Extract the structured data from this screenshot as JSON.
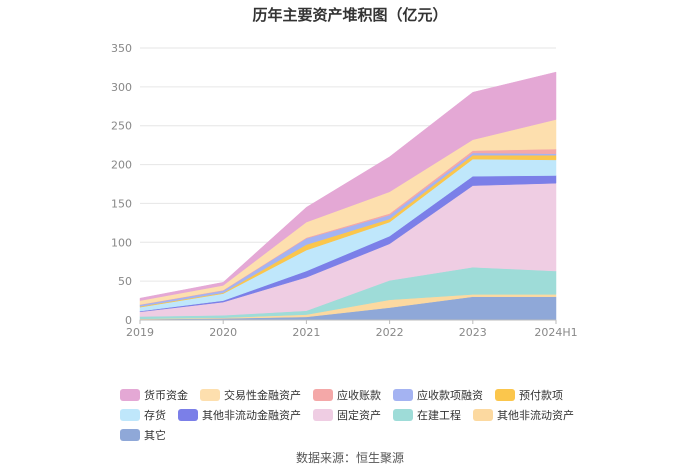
{
  "chart_data": {
    "type": "area",
    "stacked": true,
    "title": "历年主要资产堆积图（亿元）",
    "x": [
      "2019",
      "2020",
      "2021",
      "2022",
      "2023",
      "2024H1"
    ],
    "yticks": [
      0,
      50,
      100,
      150,
      200,
      250,
      300,
      350
    ],
    "ylim": [
      0,
      350
    ],
    "grid": true,
    "legend_position": "bottom",
    "series": [
      {
        "name": "其它",
        "color": "#8fa8d8",
        "values": [
          1,
          2,
          4,
          16,
          30,
          30
        ]
      },
      {
        "name": "其他非流动资产",
        "color": "#fcd9a0",
        "values": [
          0.5,
          1,
          3,
          10,
          3,
          3
        ]
      },
      {
        "name": "在建工程",
        "color": "#9edcd8",
        "values": [
          3,
          3,
          5,
          25,
          35,
          30
        ]
      },
      {
        "name": "固定资产",
        "color": "#efcde3",
        "values": [
          6,
          17,
          43,
          47,
          105,
          113
        ]
      },
      {
        "name": "其他非流动金融资产",
        "color": "#7b7fe8",
        "values": [
          1,
          2,
          8,
          10,
          12,
          10
        ]
      },
      {
        "name": "存货",
        "color": "#bfe7fb",
        "values": [
          5,
          9,
          27,
          18,
          22,
          20
        ]
      },
      {
        "name": "预付款项",
        "color": "#fbc64c",
        "values": [
          1,
          1,
          7,
          4,
          5,
          6
        ]
      },
      {
        "name": "应收款项融资",
        "color": "#a4b3f2",
        "values": [
          2,
          3,
          8,
          5,
          3,
          2
        ]
      },
      {
        "name": "应收账款",
        "color": "#f4a8a8",
        "values": [
          0.5,
          0.5,
          1,
          2,
          3,
          6
        ]
      },
      {
        "name": "交易性金融资产",
        "color": "#fddfae",
        "values": [
          5,
          6,
          20,
          28,
          14,
          38
        ]
      },
      {
        "name": "货币资金",
        "color": "#e4a8d5",
        "values": [
          3,
          4,
          19,
          45,
          61,
          61
        ]
      }
    ],
    "legend_order": [
      "货币资金",
      "交易性金融资产",
      "应收账款",
      "应收款项融资",
      "预付款项",
      "存货",
      "其他非流动金融资产",
      "固定资产",
      "在建工程",
      "其他非流动资产",
      "其它"
    ],
    "source": "数据来源：恒生聚源"
  }
}
